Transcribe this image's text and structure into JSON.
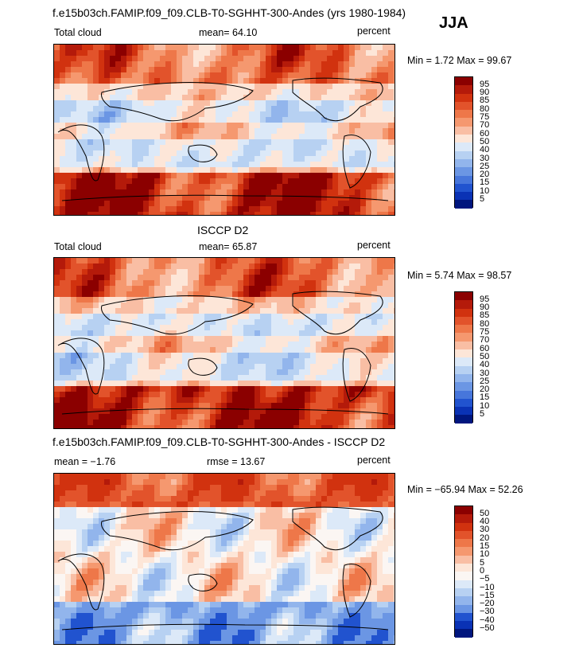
{
  "season_label": "JJA",
  "panels": [
    {
      "id": "model",
      "title": "f.e15b03ch.FAMIP.f09_f09.CLB-T0-SGHHT-300-Andes (yrs 1980-1984)",
      "left_label": "Total cloud",
      "mean_text": "mean=  64.10",
      "units": "percent",
      "minmax_text": "Min =    1.72 Max =  99.67",
      "levels": [
        "95",
        "90",
        "85",
        "80",
        "75",
        "70",
        "60",
        "50",
        "40",
        "30",
        "25",
        "20",
        "15",
        "10",
        "5"
      ],
      "colors": [
        "#8b0000",
        "#b41a0a",
        "#d1320f",
        "#e2532b",
        "#ee7749",
        "#f5986f",
        "#f9bea4",
        "#fde6d8",
        "#dce9f8",
        "#b7d1f2",
        "#92b5ec",
        "#6b96e4",
        "#4776db",
        "#2153cf",
        "#0a32b5",
        "#00167e"
      ],
      "domain": "scalar"
    },
    {
      "id": "obs",
      "title": "ISCCP D2",
      "left_label": "Total cloud",
      "mean_text": "mean=  65.87",
      "units": "percent",
      "minmax_text": "Min =    5.74 Max =  98.57",
      "levels": [
        "95",
        "90",
        "85",
        "80",
        "75",
        "70",
        "60",
        "50",
        "40",
        "30",
        "25",
        "20",
        "15",
        "10",
        "5"
      ],
      "colors": [
        "#8b0000",
        "#b41a0a",
        "#d1320f",
        "#e2532b",
        "#ee7749",
        "#f5986f",
        "#f9bea4",
        "#fde6d8",
        "#dce9f8",
        "#b7d1f2",
        "#92b5ec",
        "#6b96e4",
        "#4776db",
        "#2153cf",
        "#0a32b5",
        "#00167e"
      ],
      "domain": "scalar"
    },
    {
      "id": "diff",
      "title": "f.e15b03ch.FAMIP.f09_f09.CLB-T0-SGHHT-300-Andes - ISCCP D2",
      "left_label": "mean =  −1.76",
      "mean_text": "rmse =  13.67",
      "units": "percent",
      "minmax_text": "Min = −65.94 Max =  52.26",
      "levels": [
        "50",
        "40",
        "30",
        "20",
        "15",
        "10",
        "5",
        "0",
        "−5",
        "−10",
        "−15",
        "−20",
        "−30",
        "−40",
        "−50"
      ],
      "colors": [
        "#8b0000",
        "#b41a0a",
        "#d1320f",
        "#e2532b",
        "#ee7749",
        "#f5986f",
        "#f9bea4",
        "#fde6d8",
        "#fbf6f3",
        "#dce9f8",
        "#b7d1f2",
        "#92b5ec",
        "#6b96e4",
        "#2153cf",
        "#0a32b5",
        "#00167e"
      ],
      "domain": "difference"
    }
  ],
  "chart_data": [
    {
      "type": "heatmap",
      "title": "f.e15b03ch.FAMIP.f09_f09.CLB-T0-SGHHT-300-Andes (yrs 1980-1984)",
      "variable": "Total cloud",
      "units": "percent",
      "mean": 64.1,
      "min": 1.72,
      "max": 99.67,
      "contour_levels": [
        5,
        10,
        15,
        20,
        25,
        30,
        40,
        50,
        60,
        70,
        75,
        80,
        85,
        90,
        95
      ]
    },
    {
      "type": "heatmap",
      "title": "ISCCP D2",
      "variable": "Total cloud",
      "units": "percent",
      "mean": 65.87,
      "min": 5.74,
      "max": 98.57,
      "contour_levels": [
        5,
        10,
        15,
        20,
        25,
        30,
        40,
        50,
        60,
        70,
        75,
        80,
        85,
        90,
        95
      ]
    },
    {
      "type": "heatmap",
      "title": "f.e15b03ch.FAMIP.f09_f09.CLB-T0-SGHHT-300-Andes - ISCCP D2",
      "units": "percent",
      "mean": -1.76,
      "rmse": 13.67,
      "min": -65.94,
      "max": 52.26,
      "contour_levels": [
        -50,
        -40,
        -30,
        -20,
        -15,
        -10,
        -5,
        0,
        5,
        10,
        15,
        20,
        30,
        40,
        50
      ]
    }
  ]
}
